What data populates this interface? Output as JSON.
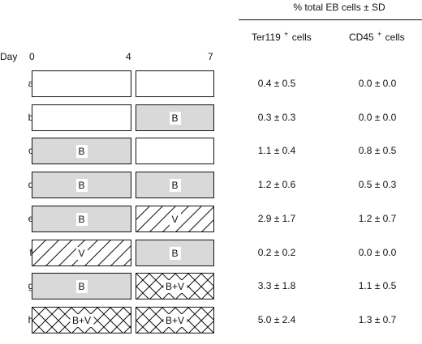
{
  "header": {
    "title": "% total EB cells ± SD",
    "col1_name": "Ter119",
    "col1_sup": "+",
    "col1_suffix": "cells",
    "col2_name": "CD45",
    "col2_sup": "+",
    "col2_suffix": "cells"
  },
  "axis": {
    "label": "Day",
    "ticks": [
      "0",
      "4",
      "7"
    ]
  },
  "rows": [
    {
      "label": "a",
      "seg1": {
        "type": "none",
        "text": ""
      },
      "seg2": {
        "type": "none",
        "text": ""
      },
      "ter119": "0.4 ± 0.5",
      "cd45": "0.0 ± 0.0"
    },
    {
      "label": "b",
      "seg1": {
        "type": "none",
        "text": ""
      },
      "seg2": {
        "type": "B",
        "text": "B"
      },
      "ter119": "0.3 ± 0.3",
      "cd45": "0.0 ± 0.0"
    },
    {
      "label": "c",
      "seg1": {
        "type": "B",
        "text": "B"
      },
      "seg2": {
        "type": "none",
        "text": ""
      },
      "ter119": "1.1 ± 0.4",
      "cd45": "0.8 ± 0.5"
    },
    {
      "label": "d",
      "seg1": {
        "type": "B",
        "text": "B"
      },
      "seg2": {
        "type": "B",
        "text": "B"
      },
      "ter119": "1.2 ± 0.6",
      "cd45": "0.5 ± 0.3"
    },
    {
      "label": "e",
      "seg1": {
        "type": "B",
        "text": "B"
      },
      "seg2": {
        "type": "V",
        "text": "V"
      },
      "ter119": "2.9 ± 1.7",
      "cd45": "1.2 ± 0.7"
    },
    {
      "label": "f",
      "seg1": {
        "type": "V",
        "text": "V"
      },
      "seg2": {
        "type": "B",
        "text": "B"
      },
      "ter119": "0.2 ± 0.2",
      "cd45": "0.0 ± 0.0"
    },
    {
      "label": "g",
      "seg1": {
        "type": "B",
        "text": "B"
      },
      "seg2": {
        "type": "BV",
        "text": "B+V"
      },
      "ter119": "3.3 ± 1.8",
      "cd45": "1.1 ± 0.5"
    },
    {
      "label": "h",
      "seg1": {
        "type": "BV",
        "text": "B+V"
      },
      "seg2": {
        "type": "BV",
        "text": "B+V"
      },
      "ter119": "5.0 ± 2.4",
      "cd45": "1.3 ± 0.7"
    }
  ]
}
